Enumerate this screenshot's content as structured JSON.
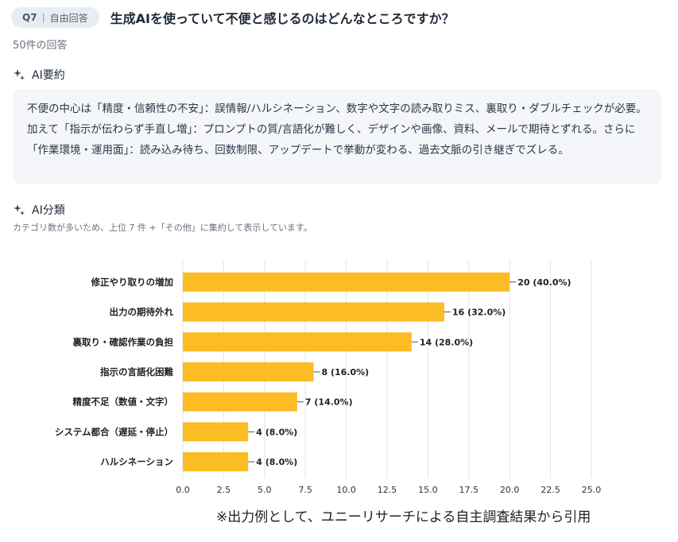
{
  "question": {
    "badge_number": "Q7",
    "badge_separator": "|",
    "badge_type": "自由回答",
    "title": "生成AIを使っていて不便と感じるのはどんなところですか？"
  },
  "response_count": "50件の回答",
  "summary_section": {
    "icon": "sparkle-icon",
    "heading": "AI要約",
    "text": "不便の中心は「精度・信頼性の不安」：誤情報/ハルシネーション、数字や文字の読み取りミス、裏取り・ダブルチェックが必要。加えて「指示が伝わらず手直し増」：プロンプトの質/言語化が難しく、デザインや画像、資料、メールで期待とずれる。さらに「作業環境・運用面」：読み込み待ち、回数制限、アップデートで挙動が変わる、過去文脈の引き継ぎでズレる。"
  },
  "classification_section": {
    "icon": "sparkle-icon",
    "heading": "AI分類",
    "note": "カテゴリ数が多いため、上位 7 件 +「その他」に集約して表示しています。"
  },
  "chart_data": {
    "type": "bar",
    "orientation": "horizontal",
    "categories": [
      "修正やり取りの増加",
      "出力の期待外れ",
      "裏取り・確認作業の負担",
      "指示の言語化困難",
      "精度不足（数値・文字）",
      "システム都合（遅延・停止）",
      "ハルシネーション"
    ],
    "values": [
      20,
      16,
      14,
      8,
      7,
      4,
      4
    ],
    "data_labels": [
      "20 (40.0%)",
      "16 (32.0%)",
      "14 (28.0%)",
      "8 (16.0%)",
      "7 (14.0%)",
      "4 (8.0%)",
      "4 (8.0%)"
    ],
    "xlim": [
      0,
      25
    ],
    "xticks": [
      "0.0",
      "2.5",
      "5.0",
      "7.5",
      "10.0",
      "12.5",
      "15.0",
      "17.5",
      "20.0",
      "22.5",
      "25.0"
    ],
    "color": "#fbbc24",
    "grid": "vertical"
  },
  "footnote": "※出力例として、ユニーリサーチによる自主調査結果から引用"
}
